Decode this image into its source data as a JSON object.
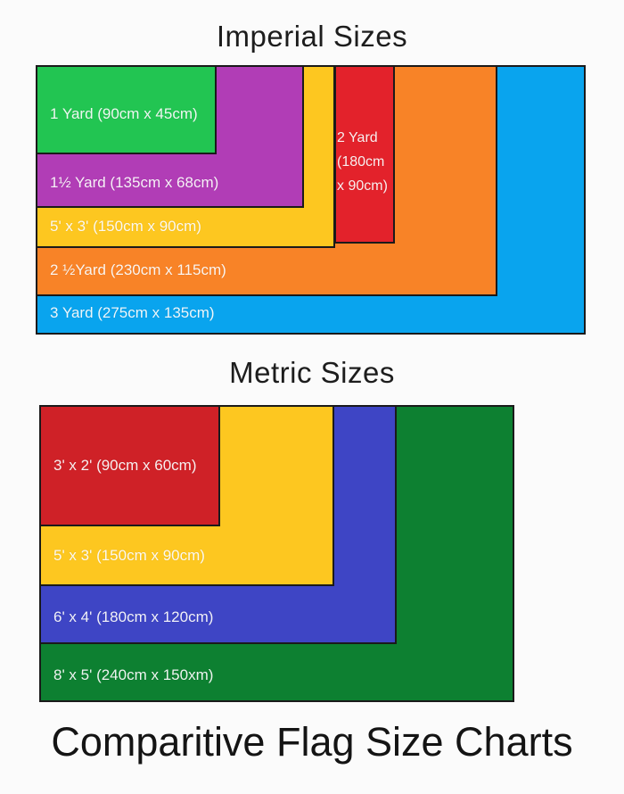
{
  "page": {
    "background": "#fbfbfb",
    "border_color": "#1a1a1a",
    "footer_title": "Comparitive Flag Size Charts"
  },
  "imperial": {
    "title": "Imperial Sizes",
    "flags": [
      {
        "name": "3-yard",
        "label": "3 Yard (275cm x 135cm)",
        "color": "#09a4ee",
        "width_cm": 275,
        "height_cm": 135
      },
      {
        "name": "2-half-yard",
        "label": "2 ½Yard (230cm x 115cm)",
        "color": "#f88327",
        "width_cm": 230,
        "height_cm": 115
      },
      {
        "name": "5ft-x-3ft",
        "label": "5' x 3' (150cm x 90cm)",
        "color": "#fdc720",
        "width_cm": 150,
        "height_cm": 90
      },
      {
        "name": "1-half-yard",
        "label": "1½ Yard (135cm x 68cm)",
        "color": "#b13db6",
        "width_cm": 135,
        "height_cm": 68
      },
      {
        "name": "1-yard",
        "label": "1 Yard (90cm x 45cm)",
        "color": "#22c552",
        "width_cm": 90,
        "height_cm": 45
      },
      {
        "name": "2-yard",
        "label_lines": {
          "0": "2 Yard",
          "1": "(180cm",
          "2": "x 90cm)"
        },
        "color": "#e3222b",
        "width_cm": 180,
        "height_cm": 90
      }
    ]
  },
  "metric": {
    "title": "Metric Sizes",
    "flags": [
      {
        "name": "8ft-x-5ft",
        "label": "8' x 5' (240cm x 150xm)",
        "color": "#0d8031",
        "width_cm": 240,
        "height_cm": 150
      },
      {
        "name": "6ft-x-4ft",
        "label": "6' x 4' (180cm x 120cm)",
        "color": "#3e45c5",
        "width_cm": 180,
        "height_cm": 120
      },
      {
        "name": "5ft-x-3ft",
        "label": "5' x 3' (150cm x 90cm)",
        "color": "#fdc720",
        "width_cm": 150,
        "height_cm": 90
      },
      {
        "name": "3ft-x-2ft",
        "label": "3' x 2' (90cm x 60cm)",
        "color": "#cf2127",
        "width_cm": 90,
        "height_cm": 60
      }
    ]
  },
  "chart_data": [
    {
      "type": "table",
      "subtype": "nested-rectangle-size-comparison",
      "title": "Imperial Sizes",
      "columns": [
        "label",
        "width_cm",
        "height_cm",
        "color"
      ],
      "rows": [
        [
          "3 Yard",
          275,
          135,
          "#09a4ee"
        ],
        [
          "2 ½ Yard",
          230,
          115,
          "#f88327"
        ],
        [
          "2 Yard",
          180,
          90,
          "#e3222b"
        ],
        [
          "5' x 3'",
          150,
          90,
          "#fdc720"
        ],
        [
          "1½ Yard",
          135,
          68,
          "#b13db6"
        ],
        [
          "1 Yard",
          90,
          45,
          "#22c552"
        ]
      ],
      "legend_position": "none",
      "grid": false
    },
    {
      "type": "table",
      "subtype": "nested-rectangle-size-comparison",
      "title": "Metric Sizes",
      "columns": [
        "label",
        "width_cm",
        "height_cm",
        "color"
      ],
      "rows": [
        [
          "8' x 5'",
          240,
          150,
          "#0d8031"
        ],
        [
          "6' x 4'",
          180,
          120,
          "#3e45c5"
        ],
        [
          "5' x 3'",
          150,
          90,
          "#fdc720"
        ],
        [
          "3' x 2'",
          90,
          60,
          "#cf2127"
        ]
      ],
      "legend_position": "none",
      "grid": false
    }
  ]
}
